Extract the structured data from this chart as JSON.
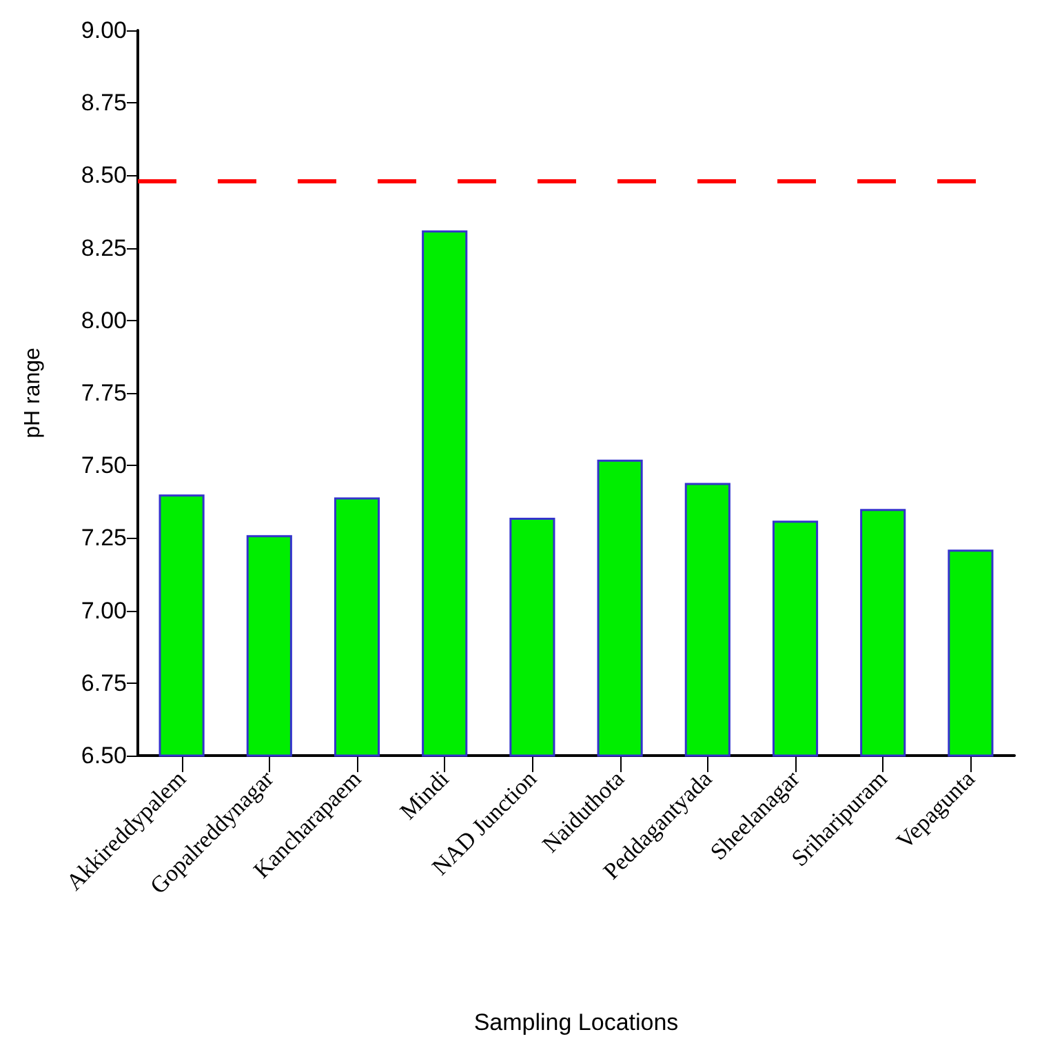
{
  "chart_data": {
    "type": "bar",
    "xlabel": "Sampling Locations",
    "ylabel": "pH range",
    "categories": [
      "Akkireddypalem",
      "Gopalreddynagar",
      "Kancharapaem",
      "Mindi",
      "NAD Junction",
      "Naiduthota",
      "Peddagantyada",
      "Sheelanagar",
      "Sriharipuram",
      "Vepagunta"
    ],
    "values": [
      7.4,
      7.26,
      7.39,
      8.31,
      7.32,
      7.52,
      7.44,
      7.31,
      7.35,
      7.21
    ],
    "color": "#00ee00",
    "ylim": [
      6.5,
      9.0
    ],
    "yticks": [
      {
        "value": 6.5,
        "label": "6.50"
      },
      {
        "value": 6.75,
        "label": "6.75"
      },
      {
        "value": 7.0,
        "label": "7.00"
      },
      {
        "value": 7.25,
        "label": "7.25"
      },
      {
        "value": 7.5,
        "label": "7.50"
      },
      {
        "value": 7.75,
        "label": "7.75"
      },
      {
        "value": 8.0,
        "label": "8.00"
      },
      {
        "value": 8.25,
        "label": "8.25"
      },
      {
        "value": 8.5,
        "label": "8.50"
      },
      {
        "value": 8.75,
        "label": "8.75"
      },
      {
        "value": 9.0,
        "label": "9.00"
      }
    ],
    "ref_lines": [
      {
        "axis": "y",
        "value": 8.48,
        "color": "#ff0000",
        "line_style": "dashed"
      }
    ],
    "grid": false
  }
}
